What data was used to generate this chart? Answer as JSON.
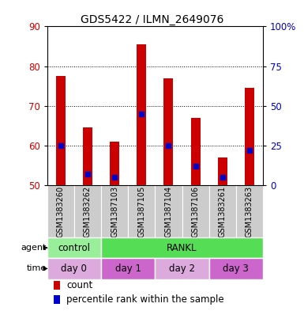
{
  "title": "GDS5422 / ILMN_2649076",
  "samples": [
    "GSM1383260",
    "GSM1383262",
    "GSM1387103",
    "GSM1387105",
    "GSM1387104",
    "GSM1387106",
    "GSM1383261",
    "GSM1383263"
  ],
  "counts": [
    77.5,
    64.5,
    61.0,
    85.5,
    77.0,
    67.0,
    57.0,
    74.5
  ],
  "percentiles": [
    25.0,
    7.0,
    5.0,
    45.0,
    25.0,
    12.0,
    5.0,
    22.0
  ],
  "ymin": 50,
  "ymax": 90,
  "y_ticks": [
    50,
    60,
    70,
    80,
    90
  ],
  "y2_ticks": [
    0,
    25,
    50,
    75,
    100
  ],
  "y2_tick_labels": [
    "0",
    "25",
    "50",
    "75",
    "100%"
  ],
  "bar_color": "#cc0000",
  "percentile_color": "#0000cc",
  "bar_bottom": 50,
  "agent_groups": [
    {
      "label": "control",
      "start": 0,
      "end": 2,
      "color": "#99ee99"
    },
    {
      "label": "RANKL",
      "start": 2,
      "end": 8,
      "color": "#55dd55"
    }
  ],
  "time_groups": [
    {
      "label": "day 0",
      "start": 0,
      "end": 2,
      "color": "#ddaadd"
    },
    {
      "label": "day 1",
      "start": 2,
      "end": 4,
      "color": "#cc66cc"
    },
    {
      "label": "day 2",
      "start": 4,
      "end": 6,
      "color": "#ddaadd"
    },
    {
      "label": "day 3",
      "start": 6,
      "end": 8,
      "color": "#cc66cc"
    }
  ],
  "grid_color": "#000000",
  "background_color": "#ffffff",
  "plot_bg": "#ffffff",
  "tick_label_color_left": "#cc0000",
  "tick_label_color_right": "#0000cc",
  "bar_width": 0.35
}
